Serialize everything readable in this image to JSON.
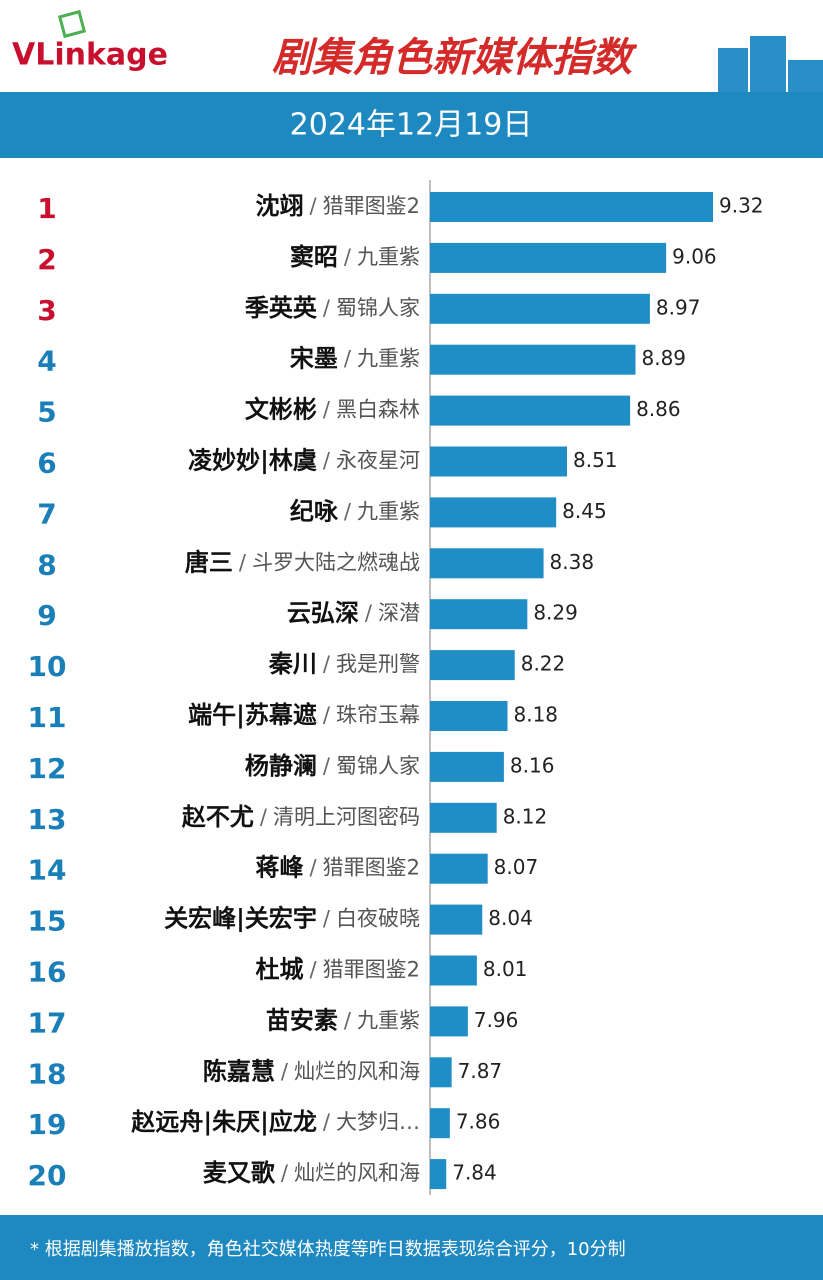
{
  "logo": "VLinkage",
  "chart_data": {
    "type": "hbar",
    "title": "剧集角色新媒体指数",
    "subtitle": "2024年12月19日",
    "ranks": [
      1,
      2,
      3,
      4,
      5,
      6,
      7,
      8,
      9,
      10,
      11,
      12,
      13,
      14,
      15,
      16,
      17,
      18,
      19,
      20
    ],
    "categories": [
      "沈翊",
      "窦昭",
      "季英英",
      "宋墨",
      "文彬彬",
      "凌妙妙|林虞",
      "纪咏",
      "唐三",
      "云弘深",
      "秦川",
      "端午|苏幕遮",
      "杨静澜",
      "赵不尤",
      "蒋峰",
      "关宏峰|关宏宇",
      "杜城",
      "苗安素",
      "陈嘉慧",
      "赵远舟|朱厌|应龙",
      "麦又歌"
    ],
    "separator": "/",
    "shows": [
      "猎罪图鉴2",
      "九重紫",
      "蜀锦人家",
      "九重紫",
      "黑白森林",
      "永夜星河",
      "九重紫",
      "斗罗大陆之燃魂战",
      "深潜",
      "我是刑警",
      "珠帘玉幕",
      "蜀锦人家",
      "清明上河图密码",
      "猎罪图鉴2",
      "白夜破晓",
      "猎罪图鉴2",
      "九重紫",
      "灿烂的风和海",
      "大梦归…",
      "灿烂的风和海"
    ],
    "values": [
      9.32,
      9.06,
      8.97,
      8.89,
      8.86,
      8.51,
      8.45,
      8.38,
      8.29,
      8.22,
      8.18,
      8.16,
      8.12,
      8.07,
      8.04,
      8.01,
      7.96,
      7.87,
      7.86,
      7.84
    ],
    "xlim": [
      7.75,
      9.32
    ],
    "color": "#1f8dc6",
    "top_color": "#c8102e",
    "rank_color": "#1a7fb8",
    "top_count": 3,
    "note": "* 根据剧集播放指数，角色社交媒体热度等昨日数据表现综合评分，10分制"
  }
}
